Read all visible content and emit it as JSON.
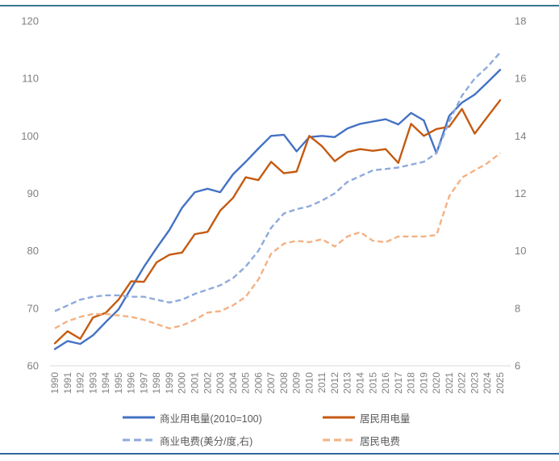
{
  "chart_data": {
    "type": "line",
    "title": "",
    "x": [
      1990,
      1991,
      1992,
      1993,
      1994,
      1995,
      1996,
      1997,
      1998,
      1999,
      2000,
      2001,
      2002,
      2003,
      2004,
      2005,
      2006,
      2007,
      2008,
      2009,
      2010,
      2011,
      2012,
      2013,
      2014,
      2015,
      2016,
      2017,
      2018,
      2019,
      2020,
      2021,
      2022,
      2023,
      2024,
      2025
    ],
    "series": [
      {
        "name": "商业用电量(2010=100)",
        "axis": "left",
        "style": "solid",
        "color": "#4472C4",
        "values": [
          62.9,
          64.3,
          63.8,
          65.3,
          67.6,
          69.8,
          73.5,
          77.2,
          80.5,
          83.6,
          87.5,
          90.2,
          90.8,
          90.2,
          93.3,
          95.5,
          97.8,
          100,
          100.2,
          97.3,
          99.8,
          100,
          99.8,
          101.3,
          102.1,
          102.5,
          102.9,
          102,
          104,
          102.7,
          97,
          103.5,
          105.8,
          107.2,
          109.3,
          111.5
        ]
      },
      {
        "name": "居民用电量",
        "axis": "left",
        "style": "solid",
        "color": "#C55A11",
        "values": [
          63.9,
          66,
          64.7,
          68.4,
          69.2,
          71.5,
          74.7,
          74.6,
          78,
          79.3,
          79.7,
          82.9,
          83.3,
          87,
          89.2,
          92.8,
          92.3,
          95.5,
          93.5,
          93.8,
          100,
          98.2,
          95.6,
          97.2,
          97.7,
          97.4,
          97.7,
          95.3,
          102.1,
          100,
          101.2,
          101.6,
          104.7,
          100.4,
          103.3,
          106.2
        ]
      },
      {
        "name": "商业电费(美分/度,右)",
        "axis": "right",
        "style": "dashed",
        "color": "#8FAADC",
        "values": [
          7.9,
          8.1,
          8.3,
          8.4,
          8.45,
          8.45,
          8.4,
          8.4,
          8.3,
          8.2,
          8.3,
          8.5,
          8.65,
          8.8,
          9.05,
          9.45,
          10,
          10.8,
          11.3,
          11.45,
          11.55,
          11.75,
          12,
          12.4,
          12.6,
          12.8,
          12.85,
          12.9,
          13,
          13.1,
          13.4,
          14.5,
          15.4,
          16,
          16.4,
          16.9
        ]
      },
      {
        "name": "居民电费",
        "axis": "right",
        "style": "dashed",
        "color": "#F4B183",
        "values": [
          7.3,
          7.55,
          7.7,
          7.8,
          7.8,
          7.75,
          7.7,
          7.6,
          7.45,
          7.3,
          7.4,
          7.6,
          7.85,
          7.9,
          8.1,
          8.4,
          9,
          9.9,
          10.25,
          10.35,
          10.3,
          10.4,
          10.15,
          10.5,
          10.65,
          10.35,
          10.3,
          10.5,
          10.5,
          10.5,
          10.55,
          11.9,
          12.55,
          12.8,
          13.05,
          13.4
        ]
      }
    ],
    "left_axis": {
      "min": 60,
      "max": 120,
      "ticks": [
        120,
        110,
        100,
        90,
        80,
        70,
        60
      ]
    },
    "right_axis": {
      "min": 6,
      "max": 18,
      "ticks": [
        18,
        16,
        14,
        12,
        10,
        8,
        6
      ]
    },
    "grid": false,
    "legend_position": "bottom"
  },
  "styles": {
    "top_rule_color": "#38798C",
    "bottom_rule_color": "#33689E",
    "axis_text_color": "#808080",
    "legend_text_color": "#595959",
    "baseline_color": "#D9D9D9"
  }
}
